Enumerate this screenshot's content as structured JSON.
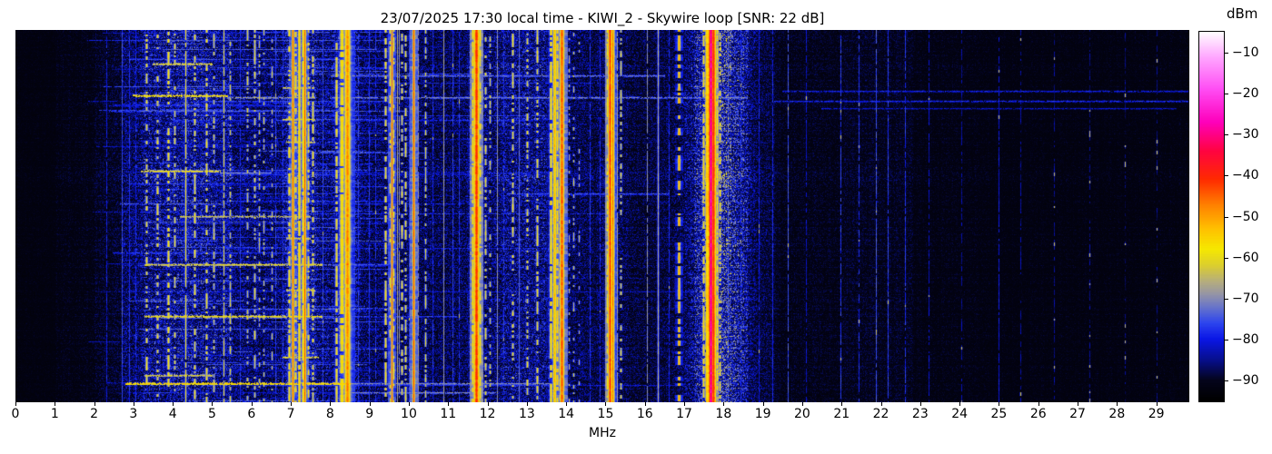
{
  "figure": {
    "background_color": "#ffffff",
    "text_color": "#000000"
  },
  "chart_data": {
    "type": "heatmap",
    "subtype": "hf-radio-spectrogram-waterfall",
    "title": "23/07/2025 17:30 local time - KIWI_2 - Skywire loop [SNR: 22 dB]",
    "xlabel": "MHz",
    "x_axis": {
      "ticks": [
        0,
        1,
        2,
        3,
        4,
        5,
        6,
        7,
        8,
        9,
        10,
        11,
        12,
        13,
        14,
        15,
        16,
        17,
        18,
        19,
        20,
        21,
        22,
        23,
        24,
        25,
        26,
        27,
        28,
        29
      ],
      "range": [
        0,
        29.84
      ]
    },
    "y_axis": {
      "tick_labels_shown": false
    },
    "grid": false,
    "colorbar": {
      "label": "dBm",
      "ticks": [
        -10,
        -20,
        -30,
        -40,
        -50,
        -60,
        -70,
        -80,
        -90
      ],
      "range": [
        -95,
        -5
      ],
      "position": "right",
      "stops": [
        [
          -95,
          "#000000"
        ],
        [
          -90,
          "#04041c"
        ],
        [
          -85,
          "#070f8e"
        ],
        [
          -80,
          "#0a16e6"
        ],
        [
          -76,
          "#2e46ee"
        ],
        [
          -72,
          "#6b77c8"
        ],
        [
          -69,
          "#9695a5"
        ],
        [
          -66,
          "#b5ad7e"
        ],
        [
          -62,
          "#dccf2e"
        ],
        [
          -58,
          "#f6e800"
        ],
        [
          -53,
          "#ffc000"
        ],
        [
          -47,
          "#ff7d00"
        ],
        [
          -41,
          "#ff2a00"
        ],
        [
          -34,
          "#ff0342"
        ],
        [
          -27,
          "#fe00bb"
        ],
        [
          -19,
          "#ff4df4"
        ],
        [
          -11,
          "#ffa9ff"
        ],
        [
          -5,
          "#ffffff"
        ]
      ]
    },
    "noise_floor_dbm": -93.5,
    "noise_zones": {
      "fields": [
        "f_start_mhz",
        "f_end_mhz",
        "activity_db"
      ],
      "rows": [
        [
          0,
          1.0,
          2.5
        ],
        [
          1.0,
          2.0,
          3.5
        ],
        [
          2.0,
          2.7,
          5
        ],
        [
          2.7,
          3.2,
          9
        ],
        [
          3.2,
          5.5,
          12
        ],
        [
          5.5,
          6.8,
          10
        ],
        [
          6.8,
          7.7,
          12
        ],
        [
          7.7,
          9.3,
          10.5
        ],
        [
          9.3,
          11.5,
          9.5
        ],
        [
          11.5,
          12.3,
          10
        ],
        [
          12.3,
          13.4,
          11
        ],
        [
          13.4,
          14.5,
          9.5
        ],
        [
          14.5,
          15.6,
          8.5
        ],
        [
          15.6,
          16.8,
          7.5
        ],
        [
          16.8,
          17.25,
          7
        ],
        [
          17.25,
          18.6,
          10
        ],
        [
          18.6,
          19.3,
          6
        ],
        [
          19.3,
          21.0,
          4.5
        ],
        [
          21.0,
          22.8,
          5
        ],
        [
          22.8,
          24.5,
          3.5
        ],
        [
          24.5,
          29.9,
          3
        ]
      ]
    },
    "glows": {
      "fields": [
        "center_mhz",
        "sigma_mhz",
        "amp_db"
      ],
      "rows": [
        [
          17.7,
          0.42,
          13
        ],
        [
          8.38,
          0.22,
          5
        ],
        [
          11.72,
          0.18,
          4
        ],
        [
          13.72,
          0.22,
          5
        ],
        [
          15.13,
          0.15,
          3
        ],
        [
          7.25,
          0.4,
          4
        ],
        [
          4.2,
          1.1,
          3
        ],
        [
          12.8,
          0.45,
          3
        ],
        [
          18.35,
          0.45,
          5
        ]
      ]
    },
    "signals": {
      "fields": [
        "freq_mhz",
        "sigma_mhz",
        "peak_dbm",
        "duty"
      ],
      "rows": [
        [
          7.05,
          0.018,
          -45,
          1
        ],
        [
          7.35,
          0.018,
          -44,
          1
        ],
        [
          8.44,
          0.05,
          -48,
          1
        ],
        [
          9.56,
          0.016,
          -46,
          1
        ],
        [
          10.11,
          0.016,
          -43,
          1
        ],
        [
          11.71,
          0.04,
          -41,
          1
        ],
        [
          13.69,
          0.032,
          -52,
          1
        ],
        [
          13.87,
          0.032,
          -43,
          1
        ],
        [
          15.11,
          0.026,
          -40,
          1
        ],
        [
          15.18,
          0.022,
          -46,
          1
        ],
        [
          16.86,
          0.022,
          -51,
          0.55
        ],
        [
          17.66,
          0.03,
          -26,
          1
        ],
        [
          17.74,
          0.026,
          -38,
          1
        ],
        [
          4.33,
          0.016,
          -57,
          0.9
        ],
        [
          5.28,
          0.016,
          -59,
          0.8
        ],
        [
          7.21,
          0.03,
          -56,
          0.95
        ],
        [
          7.3,
          0.025,
          -57,
          0.85
        ],
        [
          8.3,
          0.05,
          -57,
          0.9
        ],
        [
          8.16,
          0.03,
          -60,
          0.7
        ],
        [
          13.6,
          0.03,
          -57,
          0.85
        ],
        [
          13.77,
          0.025,
          -56,
          0.7
        ],
        [
          17.56,
          0.022,
          -55,
          0.9
        ],
        [
          12.79,
          0.02,
          -73,
          1
        ],
        [
          3.33,
          0.025,
          -60,
          0.4
        ],
        [
          3.6,
          0.03,
          -62,
          0.4
        ],
        [
          3.88,
          0.03,
          -59,
          0.45
        ],
        [
          4.05,
          0.025,
          -62,
          0.35
        ],
        [
          4.54,
          0.025,
          -60,
          0.4
        ],
        [
          4.84,
          0.025,
          -59,
          0.45
        ],
        [
          5.04,
          0.025,
          -63,
          0.35
        ],
        [
          5.45,
          0.022,
          -62,
          0.4
        ],
        [
          5.9,
          0.025,
          -63,
          0.45
        ],
        [
          6.07,
          0.025,
          -62,
          0.5
        ],
        [
          6.19,
          0.022,
          -64,
          0.4
        ],
        [
          6.3,
          0.02,
          -62,
          0.35
        ],
        [
          6.52,
          0.02,
          -63,
          0.3
        ],
        [
          6.95,
          0.03,
          -58,
          0.5
        ],
        [
          7.12,
          0.025,
          -58,
          0.5
        ],
        [
          7.44,
          0.025,
          -59,
          0.5
        ],
        [
          7.55,
          0.025,
          -60,
          0.45
        ],
        [
          9.41,
          0.025,
          -59,
          0.5
        ],
        [
          9.51,
          0.025,
          -60,
          0.45
        ],
        [
          9.61,
          0.022,
          -60,
          0.4
        ],
        [
          9.82,
          0.025,
          -61,
          0.4
        ],
        [
          9.9,
          0.022,
          -60,
          0.45
        ],
        [
          10.42,
          0.02,
          -61,
          0.5
        ],
        [
          11.62,
          0.03,
          -57,
          0.8
        ],
        [
          11.8,
          0.03,
          -58,
          0.6
        ],
        [
          11.94,
          0.025,
          -61,
          0.4
        ],
        [
          12.05,
          0.022,
          -62,
          0.35
        ],
        [
          12.63,
          0.025,
          -60,
          0.4
        ],
        [
          13.0,
          0.025,
          -61,
          0.4
        ],
        [
          13.26,
          0.025,
          -60,
          0.45
        ],
        [
          14.07,
          0.02,
          -64,
          0.25
        ],
        [
          14.19,
          0.02,
          -63,
          0.25
        ],
        [
          14.31,
          0.02,
          -65,
          0.2
        ],
        [
          15.04,
          0.025,
          -58,
          0.6
        ],
        [
          15.38,
          0.022,
          -61,
          0.4
        ],
        [
          17.49,
          0.025,
          -58,
          0.6
        ],
        [
          17.84,
          0.025,
          -57,
          0.6
        ],
        [
          17.91,
          0.025,
          -60,
          0.5
        ],
        [
          9.7,
          0.015,
          -67,
          1
        ],
        [
          9.75,
          0.014,
          -69,
          0.9
        ],
        [
          10.22,
          0.016,
          -70,
          0.85
        ],
        [
          10.87,
          0.015,
          -68,
          1
        ],
        [
          12.23,
          0.014,
          -70,
          0.95
        ],
        [
          15.3,
          0.015,
          -68,
          0.95
        ],
        [
          16.05,
          0.015,
          -70,
          0.9
        ],
        [
          16.33,
          0.02,
          -66,
          1
        ],
        [
          2.31,
          0.014,
          -80,
          0.9
        ],
        [
          2.7,
          0.014,
          -76,
          1
        ],
        [
          2.88,
          0.014,
          -78,
          0.9
        ],
        [
          3.06,
          0.014,
          -79,
          0.8
        ],
        [
          5.7,
          0.014,
          -78,
          0.9
        ],
        [
          6.6,
          0.014,
          -77,
          0.9
        ],
        [
          6.78,
          0.014,
          -78,
          0.8
        ],
        [
          7.8,
          0.014,
          -76,
          0.9
        ],
        [
          8.7,
          0.014,
          -77,
          0.9
        ],
        [
          8.98,
          0.014,
          -78,
          0.9
        ],
        [
          9.15,
          0.014,
          -78,
          0.8
        ],
        [
          10.0,
          0.014,
          -77,
          0.9
        ],
        [
          10.6,
          0.014,
          -78,
          0.9
        ],
        [
          11.1,
          0.014,
          -77,
          0.9
        ],
        [
          11.28,
          0.014,
          -78,
          0.8
        ],
        [
          12.4,
          0.014,
          -78,
          0.8
        ],
        [
          14.6,
          0.014,
          -78,
          0.9
        ],
        [
          14.85,
          0.014,
          -79,
          0.8
        ],
        [
          16.6,
          0.014,
          -79,
          0.8
        ],
        [
          18.1,
          0.016,
          -75,
          0.9
        ],
        [
          18.43,
          0.014,
          -77,
          0.7
        ],
        [
          18.9,
          0.014,
          -80,
          0.8
        ],
        [
          19.23,
          0.014,
          -79,
          0.9
        ],
        [
          19.63,
          0.014,
          -75,
          0.85
        ],
        [
          20.1,
          0.014,
          -82,
          0.7
        ],
        [
          20.97,
          0.014,
          -77,
          0.8
        ],
        [
          21.43,
          0.016,
          -78,
          0.7
        ],
        [
          21.87,
          0.014,
          -75,
          0.85
        ],
        [
          22.18,
          0.014,
          -77,
          0.9
        ],
        [
          22.6,
          0.014,
          -78,
          0.8
        ],
        [
          23.2,
          0.014,
          -82,
          0.7
        ],
        [
          24.05,
          0.014,
          -84,
          0.6
        ],
        [
          25.0,
          0.014,
          -81,
          0.8
        ],
        [
          25.55,
          0.014,
          -84,
          0.6
        ],
        [
          26.4,
          0.014,
          -85,
          0.6
        ],
        [
          27.3,
          0.014,
          -85,
          0.5
        ],
        [
          28.2,
          0.014,
          -86,
          0.5
        ],
        [
          29.0,
          0.014,
          -86,
          0.5
        ]
      ]
    },
    "time_streaks": {
      "fields": [
        "y_fraction",
        "f_start_mhz",
        "f_end_mhz",
        "level_dbm"
      ],
      "rows": [
        [
          0.09,
          3.5,
          5.0,
          -61
        ],
        [
          0.122,
          8.0,
          16.5,
          -72
        ],
        [
          0.155,
          6.8,
          7.5,
          -63
        ],
        [
          0.165,
          19.5,
          29.8,
          -80
        ],
        [
          0.175,
          3.0,
          5.4,
          -57
        ],
        [
          0.18,
          5.4,
          7.6,
          -68
        ],
        [
          0.18,
          8.0,
          18.6,
          -71
        ],
        [
          0.19,
          19.3,
          29.8,
          -79
        ],
        [
          0.21,
          20.5,
          29.5,
          -82
        ],
        [
          0.24,
          6.8,
          7.6,
          -61
        ],
        [
          0.3,
          6.9,
          7.6,
          -63
        ],
        [
          0.38,
          3.2,
          5.2,
          -60
        ],
        [
          0.385,
          5.2,
          6.5,
          -70
        ],
        [
          0.44,
          12.5,
          16.6,
          -75
        ],
        [
          0.5,
          4.2,
          7.5,
          -64
        ],
        [
          0.56,
          6.9,
          7.5,
          -63
        ],
        [
          0.63,
          3.3,
          7.8,
          -61
        ],
        [
          0.7,
          6.9,
          7.6,
          -62
        ],
        [
          0.77,
          3.3,
          7.8,
          -59
        ],
        [
          0.88,
          6.8,
          7.7,
          -61
        ],
        [
          0.93,
          3.3,
          5.0,
          -62
        ],
        [
          0.952,
          2.8,
          8.5,
          -55
        ],
        [
          0.952,
          8.5,
          13.8,
          -70
        ],
        [
          0.975,
          8.5,
          12.2,
          -71
        ]
      ]
    },
    "random_streak_count": 150,
    "render_seed": 20250723
  }
}
